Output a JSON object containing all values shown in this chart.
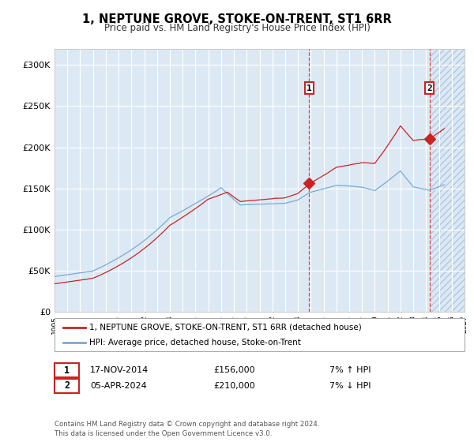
{
  "title": "1, NEPTUNE GROVE, STOKE-ON-TRENT, ST1 6RR",
  "subtitle": "Price paid vs. HM Land Registry's House Price Index (HPI)",
  "x_start_year": 1995,
  "x_end_year": 2027,
  "ylim": [
    0,
    320000
  ],
  "yticks": [
    0,
    50000,
    100000,
    150000,
    200000,
    250000,
    300000
  ],
  "ytick_labels": [
    "£0",
    "£50K",
    "£100K",
    "£150K",
    "£200K",
    "£250K",
    "£300K"
  ],
  "marker1_year": 2014.88,
  "marker1_value": 156000,
  "marker1_label": "1",
  "marker1_date": "17-NOV-2014",
  "marker1_price": "£156,000",
  "marker1_hpi": "7% ↑ HPI",
  "marker2_year": 2024.27,
  "marker2_value": 210000,
  "marker2_label": "2",
  "marker2_date": "05-APR-2024",
  "marker2_price": "£210,000",
  "marker2_hpi": "7% ↓ HPI",
  "legend_label_red": "1, NEPTUNE GROVE, STOKE-ON-TRENT, ST1 6RR (detached house)",
  "legend_label_blue": "HPI: Average price, detached house, Stoke-on-Trent",
  "footer": "Contains HM Land Registry data © Crown copyright and database right 2024.\nThis data is licensed under the Open Government Licence v3.0.",
  "bg_color_main": "#dce9f5",
  "line_color_red": "#cc2222",
  "line_color_blue": "#7aaad0",
  "grid_color": "#ffffff",
  "dashed_line_color": "#dd4444"
}
